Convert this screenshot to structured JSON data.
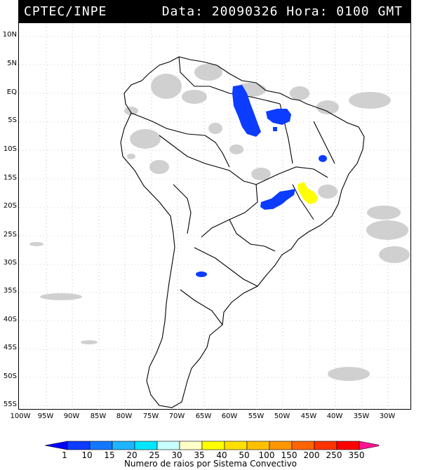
{
  "header": {
    "source": "CPTEC/INPE",
    "datetime": "Data: 20090326 Hora: 0100 GMT"
  },
  "axes": {
    "lat_labels": [
      "10N",
      "5N",
      "EQ",
      "5S",
      "10S",
      "15S",
      "20S",
      "25S",
      "30S",
      "35S",
      "40S",
      "45S",
      "50S",
      "55S"
    ],
    "lon_labels": [
      "100W",
      "95W",
      "90W",
      "85W",
      "80W",
      "75W",
      "70W",
      "65W",
      "60W",
      "55W",
      "50W",
      "45W",
      "40W",
      "35W",
      "30W"
    ]
  },
  "colorbar": {
    "title": "Numero de raios por Sistema Convectivo",
    "labels": [
      "1",
      "10",
      "15",
      "20",
      "25",
      "30",
      "35",
      "40",
      "50",
      "100",
      "150",
      "200",
      "250",
      "350"
    ],
    "colors": [
      "#0000ff",
      "#0c3cff",
      "#1478ff",
      "#1eb4ff",
      "#00e6ff",
      "#c8ffff",
      "#ffffc8",
      "#ffff00",
      "#ffe000",
      "#ffc000",
      "#ff9600",
      "#ff6400",
      "#ff3200",
      "#ff0000",
      "#ff1493"
    ]
  },
  "map": {
    "coastline_color": "#000000",
    "cloud_color": "#c8c8c8",
    "grid": "dotted",
    "systems": [
      {
        "color": "#0c3cff",
        "region": "Amazonas/Para"
      },
      {
        "color": "#0c3cff",
        "region": "Maranhao"
      },
      {
        "color": "#0c3cff",
        "region": "Bahia"
      },
      {
        "color": "#0c3cff",
        "region": "Mato Grosso do Sul/Goias"
      },
      {
        "color": "#ffff00",
        "region": "Minas Gerais"
      },
      {
        "color": "#0c3cff",
        "region": "Argentina"
      }
    ]
  }
}
